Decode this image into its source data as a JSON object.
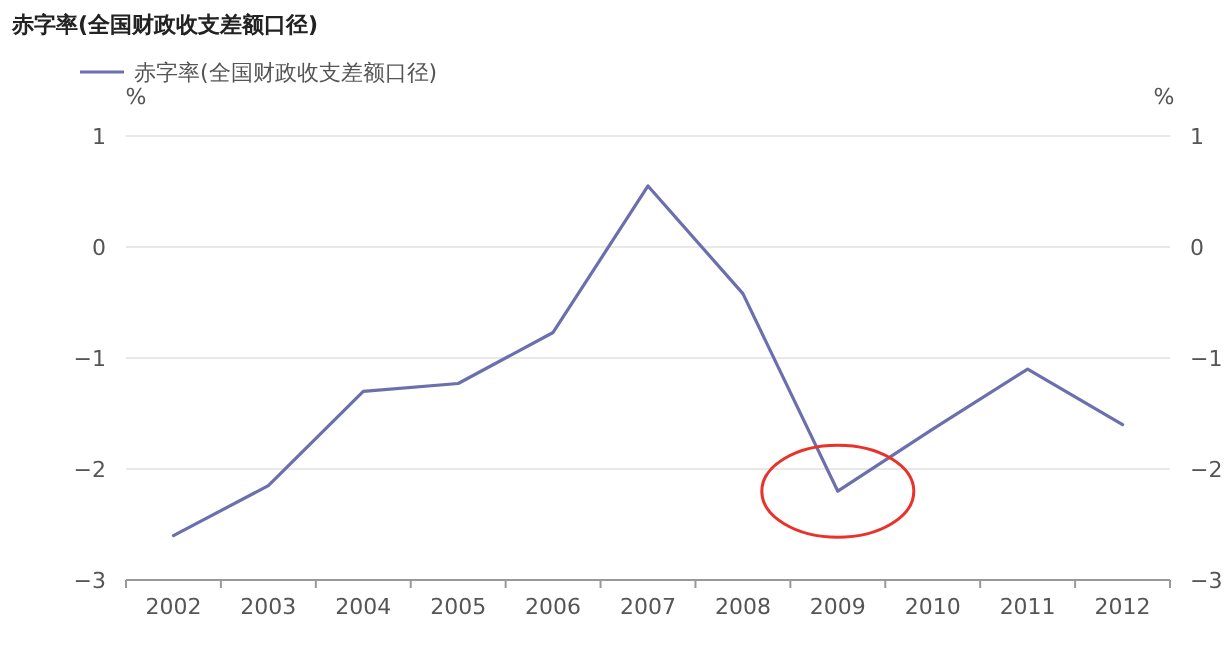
{
  "chart_data": {
    "type": "line",
    "title": "赤字率(全国财政收支差额口径)",
    "legend": "top left",
    "grid": "y",
    "ylabel": "%",
    "y2label": "%",
    "categories": [
      "2002",
      "2003",
      "2004",
      "2005",
      "2006",
      "2007",
      "2008",
      "2009",
      "2010",
      "2011",
      "2012"
    ],
    "series": [
      {
        "name": "赤字率(全国财政收支差额口径)",
        "color": "#6b6fae",
        "values": [
          -2.6,
          -2.15,
          -1.3,
          -1.23,
          -0.77,
          0.55,
          -0.42,
          -2.2,
          -1.64,
          -1.1,
          -1.6
        ]
      }
    ],
    "ylim": [
      -3,
      1
    ],
    "yticks": [
      -3,
      -2,
      -1,
      0,
      1
    ],
    "y2lim": [
      -3,
      1
    ],
    "y2ticks": [
      -3,
      -2,
      -1,
      0,
      1
    ]
  }
}
